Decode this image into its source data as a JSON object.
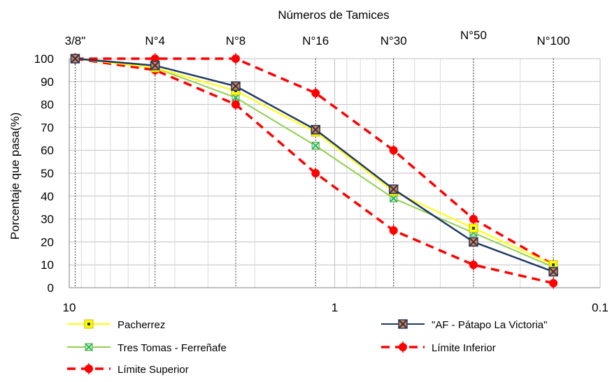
{
  "chart_data": {
    "type": "line",
    "title": "Números de Tamices",
    "xlabel": "",
    "ylabel": "Porcentaje que pasa(%)",
    "x_scale": "log",
    "x_reversed": true,
    "xlim": [
      10,
      0.1
    ],
    "ylim": [
      0,
      100
    ],
    "x_tick_labels": [
      "10",
      "1",
      "0.1"
    ],
    "y_ticks": [
      0,
      10,
      20,
      30,
      40,
      50,
      60,
      70,
      80,
      90,
      100
    ],
    "sieves": [
      {
        "label": "3/8\"",
        "x": 9.5
      },
      {
        "label": "N°4",
        "x": 4.75
      },
      {
        "label": "N°8",
        "x": 2.36
      },
      {
        "label": "N°16",
        "x": 1.18
      },
      {
        "label": "N°30",
        "x": 0.6
      },
      {
        "label": "N°50",
        "x": 0.3
      },
      {
        "label": "N°100",
        "x": 0.15
      }
    ],
    "grid": true,
    "legend_position": "bottom",
    "series": [
      {
        "name": "Pacherrez",
        "color": "#ffff00",
        "line": "solid",
        "marker": "square",
        "x": [
          9.5,
          4.75,
          2.36,
          1.18,
          0.6,
          0.3,
          0.15
        ],
        "y": [
          100,
          96,
          86,
          68,
          42,
          26,
          10
        ]
      },
      {
        "name": "\"AF - Pátapo La Victoria\"",
        "color": "#1f3864",
        "line": "solid",
        "marker": "x-square",
        "x": [
          9.5,
          4.75,
          2.36,
          1.18,
          0.6,
          0.3,
          0.15
        ],
        "y": [
          100,
          97,
          88,
          69,
          43,
          20,
          7
        ]
      },
      {
        "name": "Tres Tomas - Ferreñafe",
        "color": "#92d050",
        "line": "solid",
        "marker": "x-square-green",
        "x": [
          9.5,
          4.75,
          2.36,
          1.18,
          0.6,
          0.3,
          0.15
        ],
        "y": [
          100,
          96,
          83,
          62,
          39,
          24,
          9
        ]
      },
      {
        "name": "Límite Inferior",
        "color": "#ff0000",
        "line": "dashed",
        "marker": "circle",
        "x": [
          9.5,
          4.75,
          2.36,
          1.18,
          0.6,
          0.3,
          0.15
        ],
        "y": [
          100,
          95,
          80,
          50,
          25,
          10,
          2
        ]
      },
      {
        "name": "Límite Superior",
        "color": "#ff0000",
        "line": "dashed",
        "marker": "circle",
        "x": [
          9.5,
          4.75,
          2.36,
          1.18,
          0.6,
          0.3,
          0.15
        ],
        "y": [
          100,
          100,
          100,
          85,
          60,
          30,
          10
        ]
      }
    ]
  }
}
